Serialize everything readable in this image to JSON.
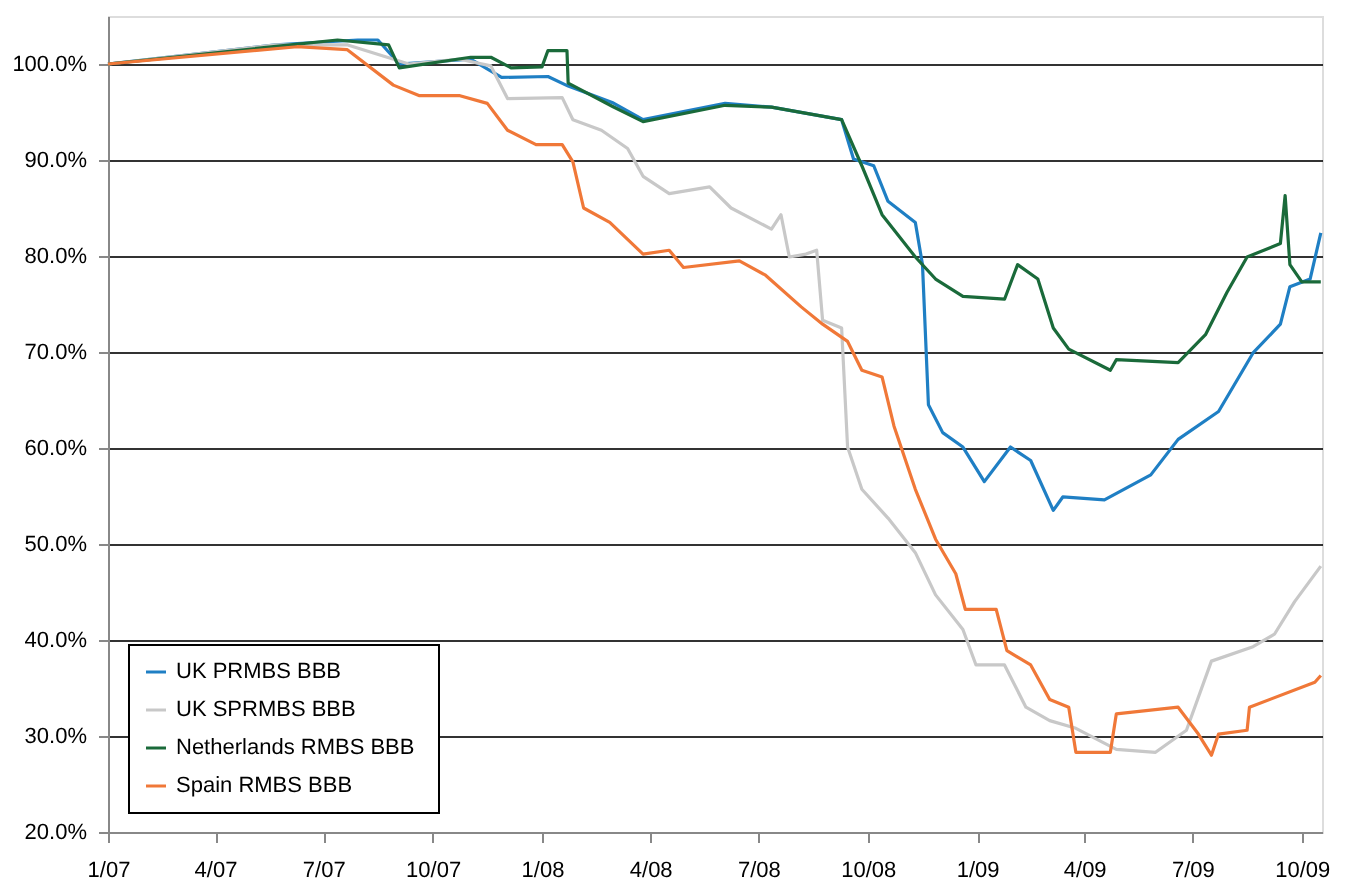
{
  "chart_data": {
    "type": "line",
    "xlim": [
      "2007-01-01",
      "2009-10-18"
    ],
    "xticks": [
      {
        "value": "2007-01-01",
        "label": "1/07"
      },
      {
        "value": "2007-04-01",
        "label": "4/07"
      },
      {
        "value": "2007-07-01",
        "label": "7/07"
      },
      {
        "value": "2007-10-01",
        "label": "10/07"
      },
      {
        "value": "2008-01-01",
        "label": "1/08"
      },
      {
        "value": "2008-04-01",
        "label": "4/08"
      },
      {
        "value": "2008-07-01",
        "label": "7/08"
      },
      {
        "value": "2008-10-01",
        "label": "10/08"
      },
      {
        "value": "2009-01-01",
        "label": "1/09"
      },
      {
        "value": "2009-04-01",
        "label": "4/09"
      },
      {
        "value": "2009-07-01",
        "label": "7/09"
      },
      {
        "value": "2009-10-01",
        "label": "10/09"
      }
    ],
    "ylim": [
      20,
      105
    ],
    "yticks": [
      {
        "value": 20,
        "label": "20.0%"
      },
      {
        "value": 30,
        "label": "30.0%"
      },
      {
        "value": 40,
        "label": "40.0%"
      },
      {
        "value": 50,
        "label": "50.0%"
      },
      {
        "value": 60,
        "label": "60.0%"
      },
      {
        "value": 70,
        "label": "70.0%"
      },
      {
        "value": 80,
        "label": "80.0%"
      },
      {
        "value": 90,
        "label": "90.0%"
      },
      {
        "value": 100,
        "label": "100.0%"
      }
    ],
    "grid": "y",
    "legend": "bottom left",
    "marker": "none",
    "line_style": "solid",
    "series": [
      {
        "name": "UK PRMBS  BBB",
        "color": "#1f7fc4",
        "x": [
          "2007-01-01",
          "2007-05-22",
          "2007-07-30",
          "2007-08-16",
          "2007-09-03",
          "2007-11-02",
          "2007-11-28",
          "2008-01-06",
          "2008-01-23",
          "2008-02-29",
          "2008-03-26",
          "2008-06-03",
          "2008-07-12",
          "2008-09-09",
          "2008-09-19",
          "2008-10-06",
          "2008-10-18",
          "2008-11-10",
          "2008-11-16",
          "2008-11-21",
          "2008-12-03",
          "2008-12-20",
          "2009-01-07",
          "2009-01-29",
          "2009-02-15",
          "2009-03-06",
          "2009-03-14",
          "2009-04-18",
          "2009-05-27",
          "2009-06-19",
          "2009-07-23",
          "2009-08-21",
          "2009-09-13",
          "2009-09-21",
          "2009-10-08",
          "2009-10-17"
        ],
        "values": [
          100,
          102,
          102.5,
          102.5,
          100,
          100.5,
          98.6,
          98.7,
          97.7,
          96,
          94.2,
          95.9,
          95.5,
          94.2,
          90.1,
          89.4,
          85.7,
          83.5,
          79.1,
          64.5,
          61.6,
          60.1,
          56.5,
          60.1,
          58.7,
          53.5,
          54.9,
          54.6,
          57.2,
          60.9,
          63.8,
          69.9,
          72.9,
          76.8,
          77.6,
          82.4
        ]
      },
      {
        "name": "UK SPRMBS  BBB",
        "color": "#c8c8c8",
        "x": [
          "2007-01-01",
          "2007-05-22",
          "2007-07-21",
          "2007-09-11",
          "2007-10-24",
          "2007-11-19",
          "2007-12-03",
          "2008-01-18",
          "2008-01-27",
          "2008-02-20",
          "2008-03-13",
          "2008-03-26",
          "2008-04-17",
          "2008-05-21",
          "2008-06-08",
          "2008-07-12",
          "2008-07-20",
          "2008-07-27",
          "2008-08-10",
          "2008-08-19",
          "2008-08-24",
          "2008-09-09",
          "2008-09-14",
          "2008-09-26",
          "2008-10-18",
          "2008-11-10",
          "2008-11-27",
          "2008-12-20",
          "2008-12-31",
          "2009-01-24",
          "2009-02-11",
          "2009-03-03",
          "2009-03-25",
          "2009-04-28",
          "2009-05-31",
          "2009-06-26",
          "2009-07-17",
          "2009-08-21",
          "2009-09-08",
          "2009-09-25",
          "2009-10-17"
        ],
        "values": [
          100,
          102,
          102,
          100,
          100.5,
          99.8,
          96.4,
          96.5,
          94.2,
          93.1,
          91.2,
          88.3,
          86.5,
          87.2,
          85,
          82.8,
          84.3,
          79.9,
          80.2,
          80.6,
          73.3,
          72.5,
          60.1,
          55.7,
          52.7,
          49.1,
          44.7,
          41.1,
          37.4,
          37.4,
          33,
          31.6,
          30.8,
          28.6,
          28.3,
          30.6,
          37.8,
          39.3,
          40.6,
          44,
          47.7
        ]
      },
      {
        "name": "Netherlands RMBS  BBB",
        "color": "#1a6a3a",
        "x": [
          "2007-01-01",
          "2007-07-13",
          "2007-08-25",
          "2007-09-03",
          "2007-11-02",
          "2007-11-19",
          "2007-12-06",
          "2008-01-01",
          "2008-01-06",
          "2008-01-22",
          "2008-01-23",
          "2008-02-29",
          "2008-03-26",
          "2008-06-03",
          "2008-07-12",
          "2008-09-09",
          "2008-09-26",
          "2008-10-13",
          "2008-11-10",
          "2008-11-27",
          "2008-12-20",
          "2009-01-24",
          "2009-02-04",
          "2009-02-21",
          "2009-03-06",
          "2009-03-19",
          "2009-04-23",
          "2009-04-28",
          "2009-06-19",
          "2009-07-12",
          "2009-07-30",
          "2009-08-16",
          "2009-09-13",
          "2009-09-17",
          "2009-09-21",
          "2009-10-01",
          "2009-10-17"
        ],
        "values": [
          100,
          102.5,
          102,
          99.6,
          100.7,
          100.7,
          99.6,
          99.7,
          101.4,
          101.4,
          98,
          95.6,
          94,
          95.7,
          95.5,
          94.2,
          89.4,
          84.3,
          79.9,
          77.6,
          75.8,
          75.5,
          79.1,
          77.6,
          72.5,
          70.3,
          68.1,
          69.2,
          68.9,
          71.8,
          76.2,
          79.9,
          81.3,
          86.3,
          79.1,
          77.3,
          77.3
        ]
      },
      {
        "name": "Spain RMBS  BBB",
        "color": "#f07838",
        "x": [
          "2007-01-01",
          "2007-06-09",
          "2007-07-21",
          "2007-08-29",
          "2007-09-20",
          "2007-10-24",
          "2007-11-16",
          "2007-12-03",
          "2007-12-27",
          "2008-01-18",
          "2008-01-27",
          "2008-02-05",
          "2008-02-27",
          "2008-03-26",
          "2008-04-17",
          "2008-04-29",
          "2008-06-15",
          "2008-07-07",
          "2008-08-06",
          "2008-08-24",
          "2008-09-14",
          "2008-09-26",
          "2008-10-13",
          "2008-10-23",
          "2008-11-10",
          "2008-11-27",
          "2008-12-14",
          "2008-12-22",
          "2009-01-17",
          "2009-01-26",
          "2009-02-15",
          "2009-03-03",
          "2009-03-19",
          "2009-03-25",
          "2009-04-23",
          "2009-04-28",
          "2009-06-19",
          "2009-07-06",
          "2009-07-17",
          "2009-07-23",
          "2009-08-16",
          "2009-08-18",
          "2009-10-12",
          "2009-10-17"
        ],
        "values": [
          100,
          101.8,
          101.5,
          97.8,
          96.7,
          96.7,
          95.9,
          93.1,
          91.6,
          91.6,
          89.8,
          85,
          83.5,
          80.2,
          80.6,
          78.8,
          79.5,
          78,
          74.7,
          72.9,
          71.1,
          68.1,
          67.4,
          62.3,
          55.7,
          50.5,
          46.9,
          43.2,
          43.2,
          38.9,
          37.4,
          33.8,
          33,
          28.3,
          28.3,
          32.3,
          33,
          30.2,
          28,
          30.2,
          30.6,
          33,
          35.6,
          36.3
        ]
      }
    ]
  }
}
